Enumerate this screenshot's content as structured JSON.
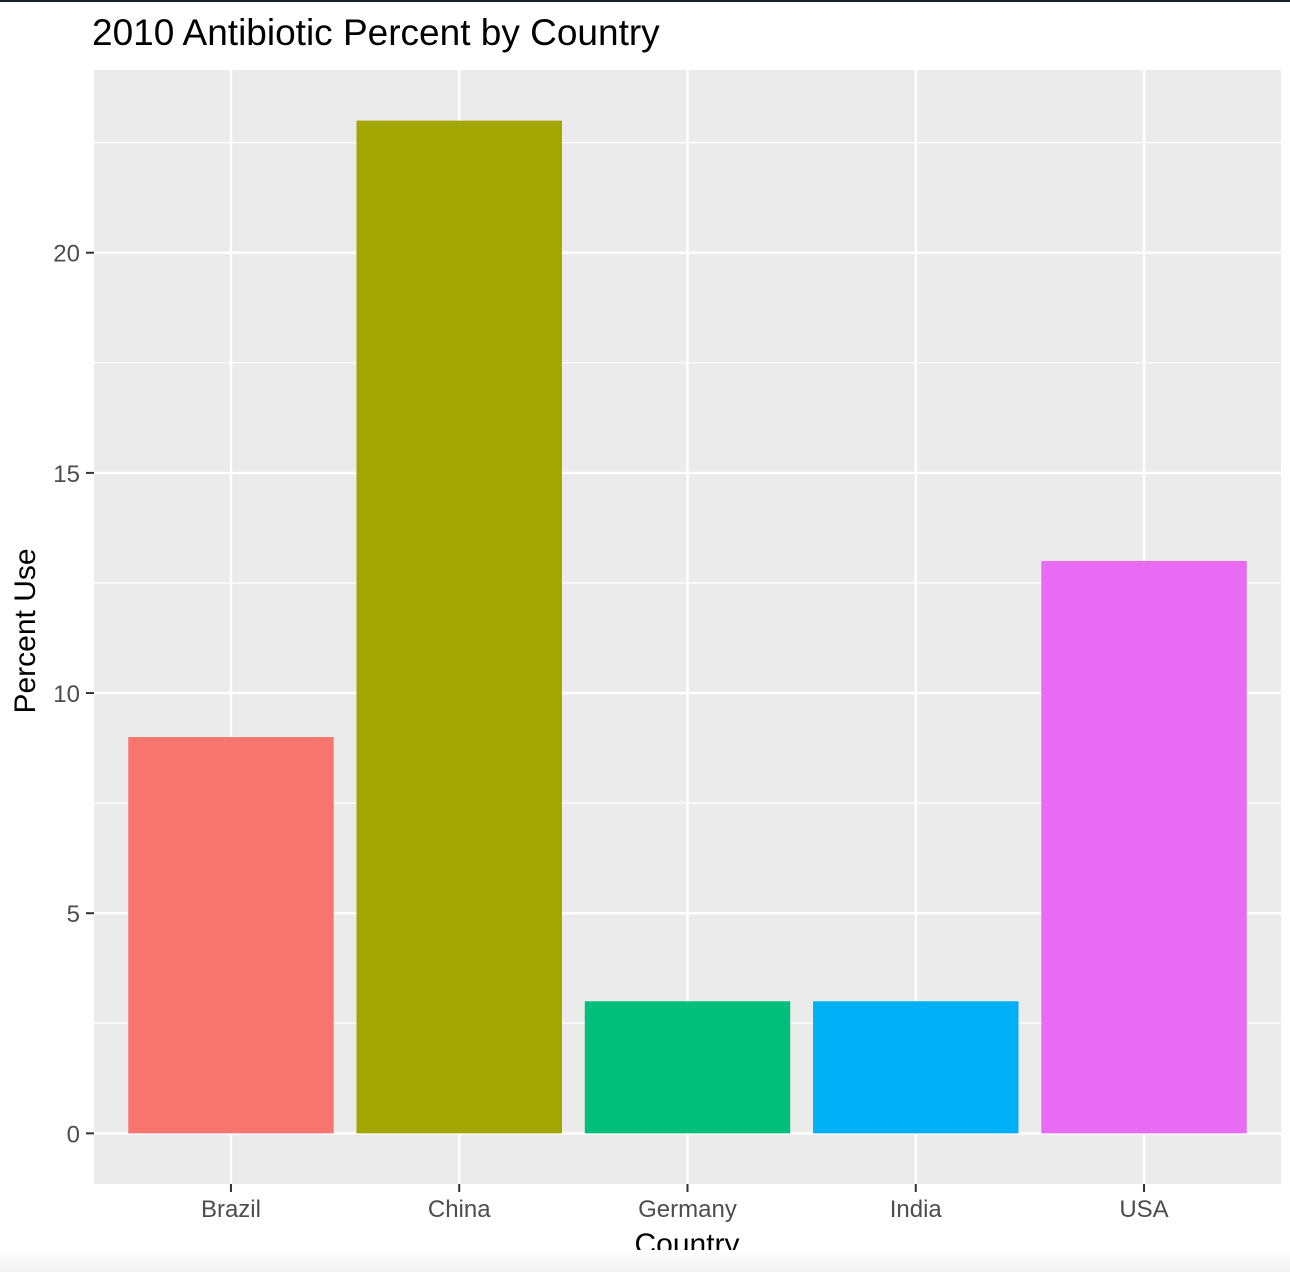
{
  "chart_data": {
    "type": "bar",
    "title": "2010 Antibiotic Percent by Country",
    "xlabel": "Country",
    "ylabel": "Percent Use",
    "categories": [
      "Brazil",
      "China",
      "Germany",
      "India",
      "USA"
    ],
    "values": [
      9,
      23,
      3,
      3,
      13
    ],
    "colors": [
      "#F8766D",
      "#A3A500",
      "#00BF7D",
      "#00B0F6",
      "#E76BF3"
    ],
    "yticks": [
      0,
      5,
      10,
      15,
      20
    ],
    "ylim": [
      -1.15,
      24.15
    ],
    "grid": true,
    "legend": "none",
    "panel_background": "#EBEBEB",
    "grid_color": "#FFFFFF"
  }
}
